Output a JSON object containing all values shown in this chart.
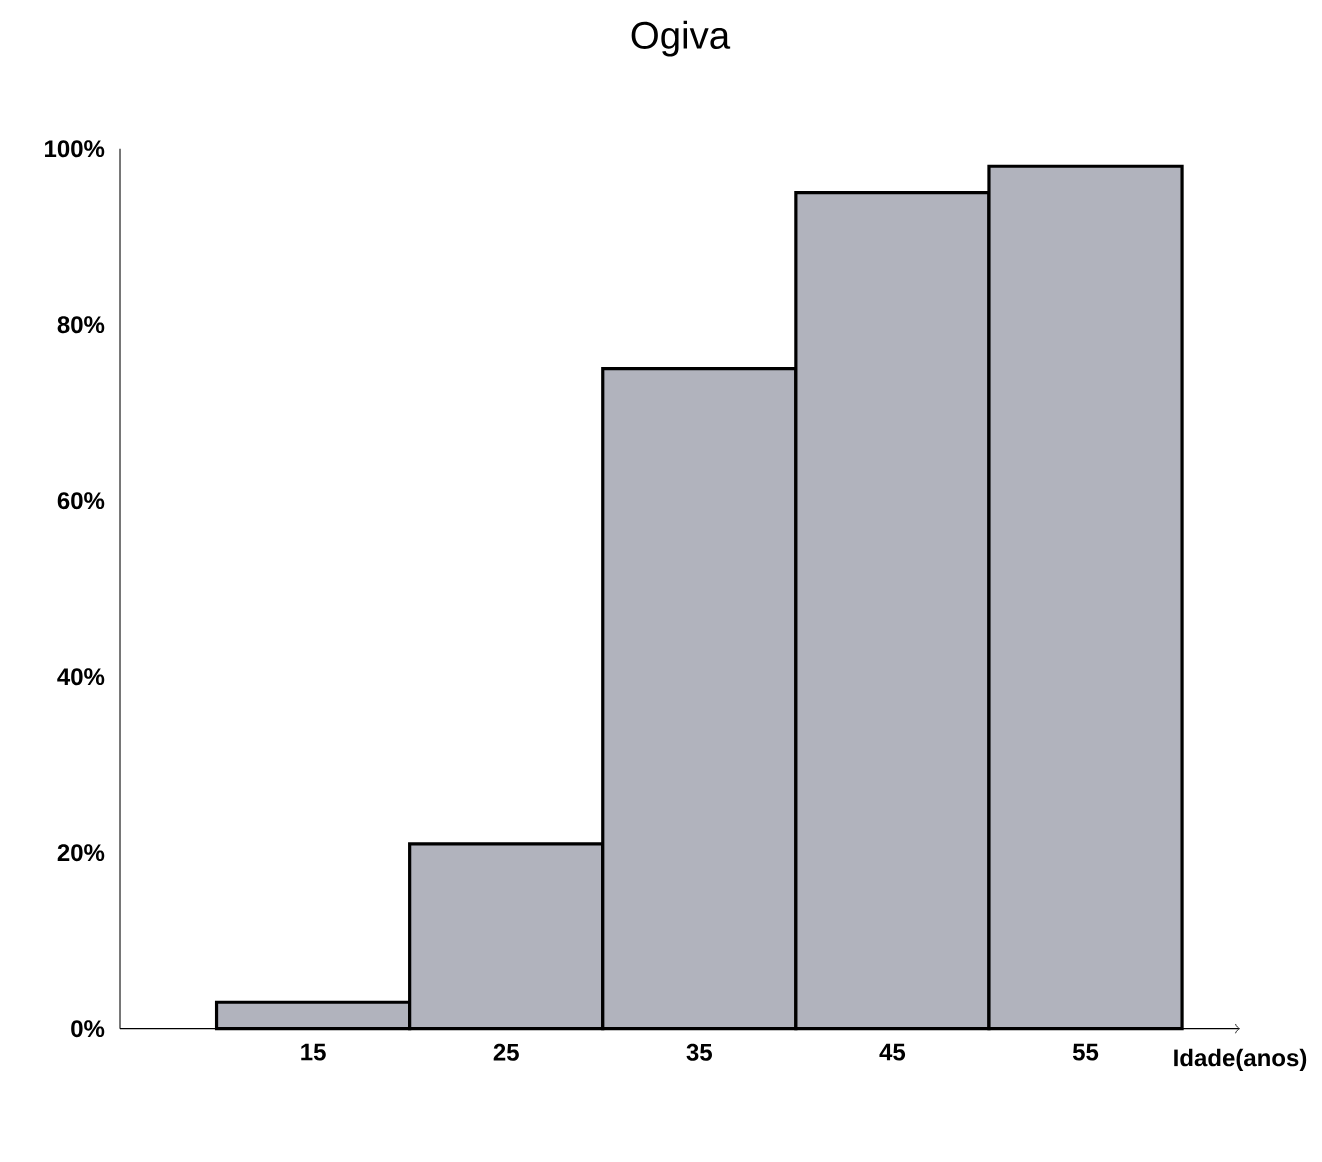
{
  "chart_data": {
    "type": "histogram",
    "title": "Ogiva",
    "xlabel": "Idade(anos)",
    "bins": [
      10,
      20,
      30,
      40,
      50,
      60
    ],
    "values": [
      3,
      21,
      75,
      95,
      98
    ],
    "color": "#b1b3bd",
    "xlim": [
      5,
      63
    ],
    "xticks": [
      15,
      25,
      35,
      45,
      55
    ],
    "ylim": [
      0,
      100
    ],
    "yticks": [
      {
        "value": 0,
        "label": "0%"
      },
      {
        "value": 20,
        "label": "20%"
      },
      {
        "value": 40,
        "label": "40%"
      },
      {
        "value": 60,
        "label": "60%"
      },
      {
        "value": 80,
        "label": "80%"
      },
      {
        "value": 100,
        "label": "100%"
      }
    ]
  }
}
